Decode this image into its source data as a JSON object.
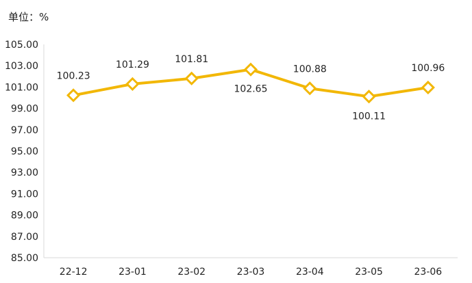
{
  "chart_data": {
    "type": "line",
    "unit_label": "单位：%",
    "categories": [
      "22-12",
      "23-01",
      "23-02",
      "23-03",
      "23-04",
      "23-05",
      "23-06"
    ],
    "series": [
      {
        "values": [
          100.23,
          101.29,
          101.81,
          102.65,
          100.88,
          100.11,
          100.96
        ],
        "data_labels": [
          "100.23",
          "101.29",
          "101.81",
          "102.65",
          "100.88",
          "100.11",
          "100.96"
        ],
        "label_position": [
          "above",
          "above",
          "above",
          "below",
          "above",
          "below",
          "above"
        ],
        "color": "#F2B705",
        "marker": "diamond-open"
      }
    ],
    "ylim": [
      85,
      105
    ],
    "yticks": [
      "85.00",
      "87.00",
      "89.00",
      "91.00",
      "93.00",
      "95.00",
      "97.00",
      "99.00",
      "101.00",
      "103.00",
      "105.00"
    ],
    "grid": false,
    "legend": "none",
    "axis_color": "#d9d9d9"
  }
}
